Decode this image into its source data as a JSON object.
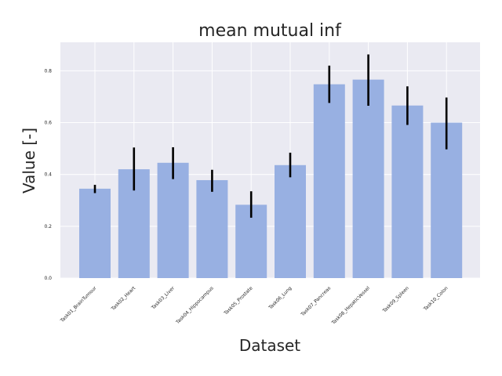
{
  "chart_data": {
    "type": "bar",
    "title": "mean mutual inf",
    "xlabel": "Dataset",
    "ylabel": "Value [-]",
    "ylim": [
      0,
      0.91
    ],
    "yticks": [
      "0.0",
      "0.2",
      "0.4",
      "0.6",
      "0.8"
    ],
    "grid": true,
    "categories": [
      "Task01_BrainTumour",
      "Task02_Heart",
      "Task03_Liver",
      "Task04_Hippocampus",
      "Task05_Prostate",
      "Task06_Lung",
      "Task07_Pancreas",
      "Task08_HepaticVessel",
      "Task09_Spleen",
      "Task10_Colon"
    ],
    "values": [
      0.345,
      0.42,
      0.445,
      0.378,
      0.283,
      0.436,
      0.748,
      0.766,
      0.666,
      0.6
    ],
    "error_low": [
      0.328,
      0.338,
      0.382,
      0.333,
      0.233,
      0.389,
      0.676,
      0.665,
      0.591,
      0.497
    ],
    "error_high": [
      0.36,
      0.504,
      0.505,
      0.418,
      0.335,
      0.484,
      0.82,
      0.863,
      0.74,
      0.697
    ],
    "colors": {
      "bar": "#98b0e2",
      "error": "#000000",
      "background": "#eaeaf2",
      "grid": "#ffffff",
      "text": "#262626"
    }
  }
}
